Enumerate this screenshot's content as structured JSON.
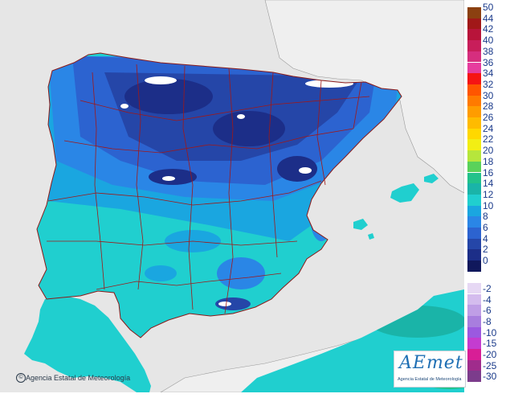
{
  "map": {
    "ocean_color": "#e6e6e6",
    "land_outside_color": "#eeeeee",
    "border_color": "#b01818"
  },
  "legend": {
    "positive": [
      {
        "label": "50",
        "color": "#8b4010"
      },
      {
        "label": "44",
        "color": "#a11818"
      },
      {
        "label": "42",
        "color": "#b8143a"
      },
      {
        "label": "40",
        "color": "#c81e5a"
      },
      {
        "label": "38",
        "color": "#d62e7e"
      },
      {
        "label": "36",
        "color": "#e63c9e"
      },
      {
        "label": "34",
        "color": "#f51414"
      },
      {
        "label": "32",
        "color": "#ff5500"
      },
      {
        "label": "30",
        "color": "#ff7a00"
      },
      {
        "label": "28",
        "color": "#ff9c00"
      },
      {
        "label": "26",
        "color": "#ffbb00"
      },
      {
        "label": "24",
        "color": "#ffd800"
      },
      {
        "label": "22",
        "color": "#f2ee14"
      },
      {
        "label": "20",
        "color": "#b6e63c"
      },
      {
        "label": "18",
        "color": "#5ad25a"
      },
      {
        "label": "16",
        "color": "#22c28a"
      },
      {
        "label": "14",
        "color": "#1ab4a8"
      },
      {
        "label": "12",
        "color": "#20cfcf"
      },
      {
        "label": "10",
        "color": "#1aa6e0"
      },
      {
        "label": "8",
        "color": "#2a86e6"
      },
      {
        "label": "6",
        "color": "#2c63d0"
      },
      {
        "label": "4",
        "color": "#2546a8"
      },
      {
        "label": "2",
        "color": "#1c2e88"
      },
      {
        "label": "0",
        "color": "#10185c"
      }
    ],
    "negative": [
      {
        "label": "-2",
        "color": "#e6d8f4"
      },
      {
        "label": "-4",
        "color": "#d4bcee"
      },
      {
        "label": "-6",
        "color": "#bf9ee6"
      },
      {
        "label": "-8",
        "color": "#a87ede"
      },
      {
        "label": "-10",
        "color": "#9b59e0"
      },
      {
        "label": "-15",
        "color": "#c43cd0"
      },
      {
        "label": "-20",
        "color": "#d81e96"
      },
      {
        "label": "-25",
        "color": "#a02c8c"
      },
      {
        "label": "-30",
        "color": "#7c3c8c"
      }
    ]
  },
  "credit": {
    "text": "Agencia Estatal de Meteorología"
  },
  "logo": {
    "word": "AEmet",
    "subtitle": "Agencia Estatal de Meteorología"
  }
}
